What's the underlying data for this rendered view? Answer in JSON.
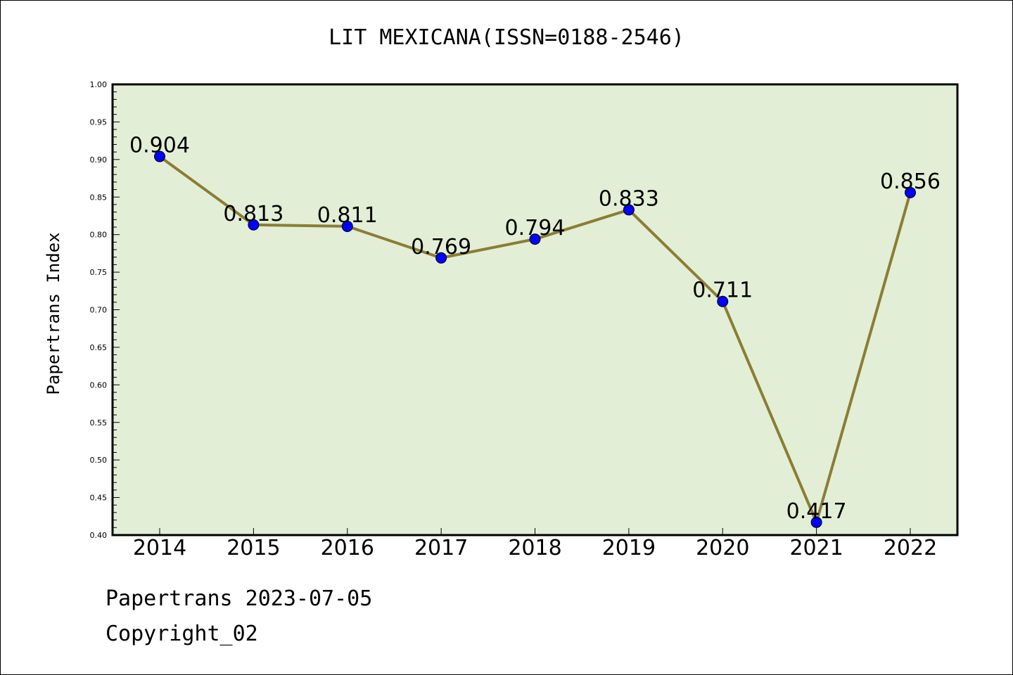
{
  "chart_data": {
    "type": "line",
    "title": "LIT MEXICANA(ISSN=0188-2546)",
    "ylabel": "Papertrans Index",
    "xlabel": "",
    "categories": [
      "2014",
      "2015",
      "2016",
      "2017",
      "2018",
      "2019",
      "2020",
      "2021",
      "2022"
    ],
    "series": [
      {
        "values": [
          0.904,
          0.813,
          0.811,
          0.769,
          0.794,
          0.833,
          0.711,
          0.417,
          0.856
        ]
      }
    ],
    "data_labels": [
      "0.904",
      "0.813",
      "0.811",
      "0.769",
      "0.794",
      "0.833",
      "0.711",
      "0.417",
      "0.856"
    ],
    "ylim": [
      0.4,
      1.0
    ],
    "yticks": [
      "0.40",
      "0.45",
      "0.50",
      "0.55",
      "0.60",
      "0.65",
      "0.70",
      "0.75",
      "0.80",
      "0.85",
      "0.90",
      "0.95",
      "1.00"
    ],
    "grid": false,
    "colors": {
      "plot_background": "#e2efd6",
      "line": "#8b7d35",
      "marker": "#0000ff"
    }
  },
  "footer": {
    "line1": "Papertrans 2023-07-05",
    "line2": "Copyright_02"
  }
}
